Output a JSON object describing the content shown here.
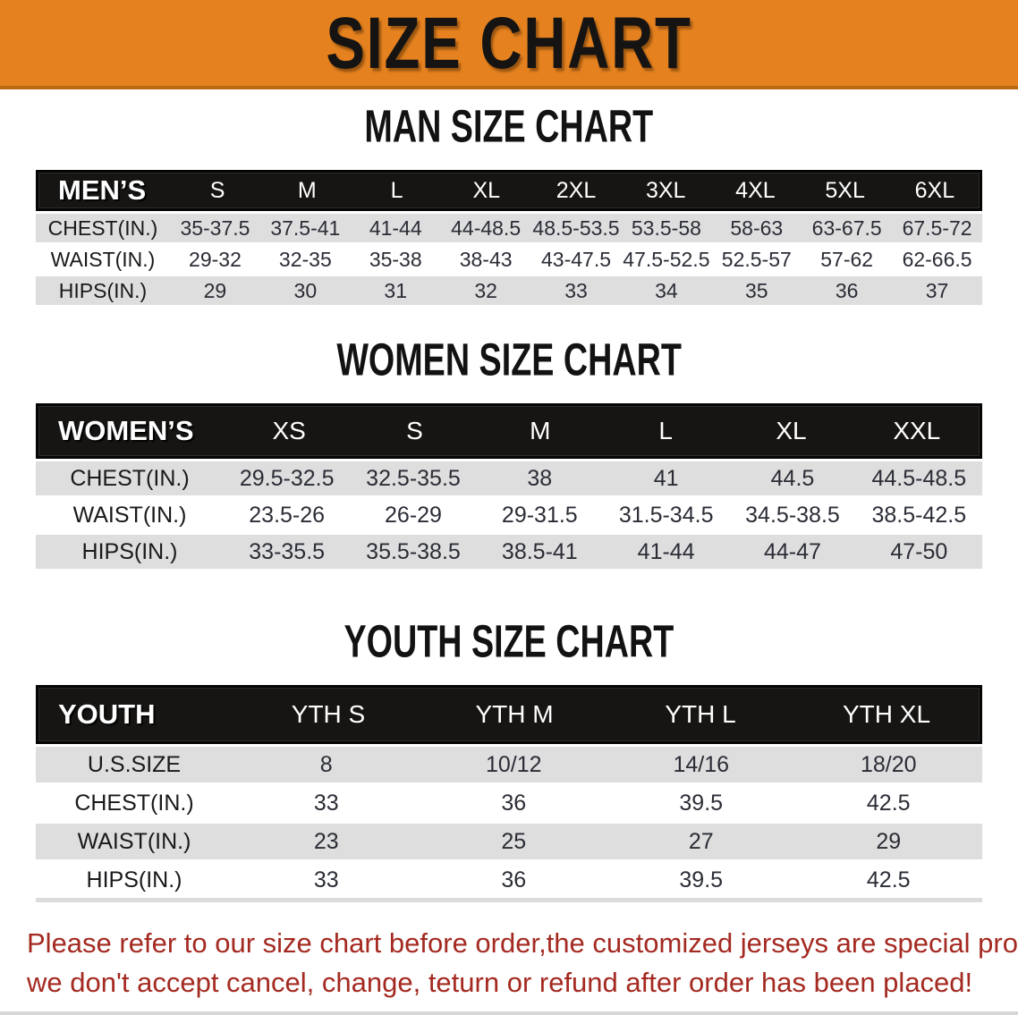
{
  "banner": {
    "title": "SIZE CHART",
    "bg_color": "#e5821f"
  },
  "sections": [
    {
      "heading": "MAN SIZE CHART",
      "group_label": "MEN’S",
      "columns": [
        "S",
        "M",
        "L",
        "XL",
        "2XL",
        "3XL",
        "4XL",
        "5XL",
        "6XL"
      ],
      "rows": [
        {
          "label": "CHEST(IN.)",
          "values": [
            "35-37.5",
            "37.5-41",
            "41-44",
            "44-48.5",
            "48.5-53.5",
            "53.5-58",
            "58-63",
            "63-67.5",
            "67.5-72"
          ]
        },
        {
          "label": "WAIST(IN.)",
          "values": [
            "29-32",
            "32-35",
            "35-38",
            "38-43",
            "43-47.5",
            "47.5-52.5",
            "52.5-57",
            "57-62",
            "62-66.5"
          ]
        },
        {
          "label": "HIPS(IN.)",
          "values": [
            "29",
            "30",
            "31",
            "32",
            "33",
            "34",
            "35",
            "36",
            "37"
          ]
        }
      ]
    },
    {
      "heading": "WOMEN SIZE CHART",
      "group_label": "WOMEN’S",
      "columns": [
        "XS",
        "S",
        "M",
        "L",
        "XL",
        "XXL"
      ],
      "rows": [
        {
          "label": "CHEST(IN.)",
          "values": [
            "29.5-32.5",
            "32.5-35.5",
            "38",
            "41",
            "44.5",
            "44.5-48.5"
          ]
        },
        {
          "label": "WAIST(IN.)",
          "values": [
            "23.5-26",
            "26-29",
            "29-31.5",
            "31.5-34.5",
            "34.5-38.5",
            "38.5-42.5"
          ]
        },
        {
          "label": "HIPS(IN.)",
          "values": [
            "33-35.5",
            "35.5-38.5",
            "38.5-41",
            "41-44",
            "44-47",
            "47-50"
          ]
        }
      ]
    },
    {
      "heading": "YOUTH SIZE CHART",
      "group_label": "YOUTH",
      "columns": [
        "YTH S",
        "YTH M",
        "YTH L",
        "YTH XL"
      ],
      "rows": [
        {
          "label": "U.S.SIZE",
          "values": [
            "8",
            "10/12",
            "14/16",
            "18/20"
          ]
        },
        {
          "label": "CHEST(IN.)",
          "values": [
            "33",
            "36",
            "39.5",
            "42.5"
          ]
        },
        {
          "label": "WAIST(IN.)",
          "values": [
            "23",
            "25",
            "27",
            "29"
          ]
        },
        {
          "label": "HIPS(IN.)",
          "values": [
            "33",
            "36",
            "39.5",
            "42.5"
          ]
        }
      ]
    }
  ],
  "footer": {
    "line1": "Please refer to our size chart before order,the customized jerseys are special products,",
    "line2": "we don't accept cancel, change, teturn or refund after order has been placed!",
    "text_color": "#a42a21"
  }
}
